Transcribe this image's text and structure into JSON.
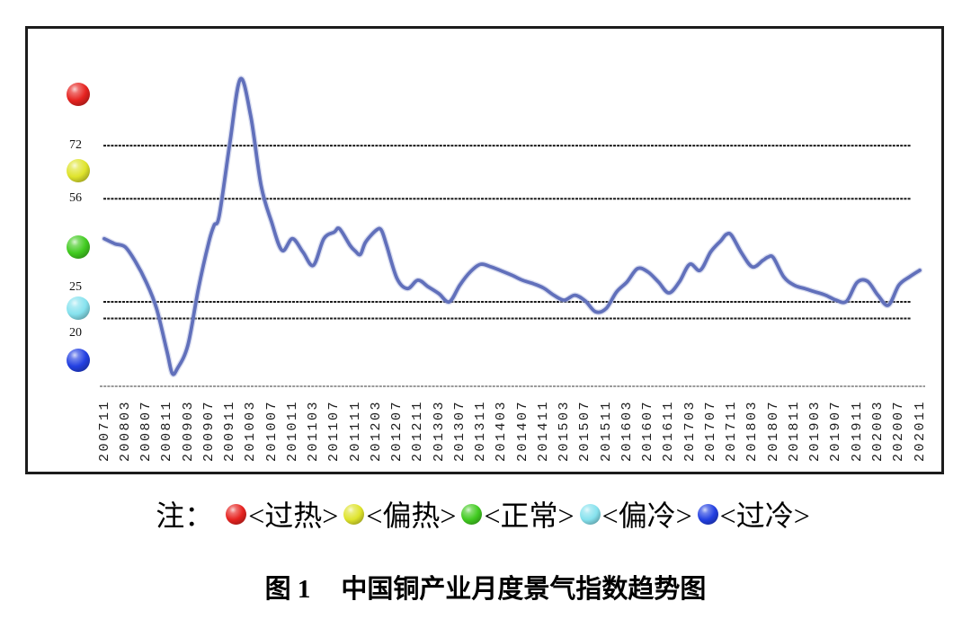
{
  "page": {
    "background": "#ffffff"
  },
  "chart_data": {
    "type": "line",
    "title": "中国铜产业月度景气指数趋势图",
    "xlabel": "",
    "ylabel": "",
    "ylim": [
      0,
      107
    ],
    "grid": "horizontal-reference-lines-only",
    "legend_position": "below-chart",
    "y_axis_labels": [
      "72",
      "56",
      "25",
      "20"
    ],
    "y_reference_lines": [
      72,
      56,
      25,
      20
    ],
    "baseline_value": 0,
    "x_tick_labels": [
      "200711",
      "200803",
      "200807",
      "200811",
      "200903",
      "200907",
      "200911",
      "201003",
      "201007",
      "201011",
      "201103",
      "201107",
      "201111",
      "201203",
      "201207",
      "201211",
      "201303",
      "201307",
      "201311",
      "201403",
      "201407",
      "201411",
      "201503",
      "201507",
      "201511",
      "201603",
      "201607",
      "201611",
      "201703",
      "201707",
      "201711",
      "201803",
      "201807",
      "201811",
      "201903",
      "201907",
      "201911",
      "202003",
      "202007",
      "202011"
    ],
    "series": [
      {
        "name": "中国铜产业月度景气指数",
        "color": "#6170bb",
        "points": [
          [
            "200711",
            44
          ],
          [
            "200801",
            42.5
          ],
          [
            "200803",
            41.5
          ],
          [
            "200805",
            37
          ],
          [
            "200807",
            31
          ],
          [
            "200809",
            23
          ],
          [
            "200811",
            10
          ],
          [
            "200812",
            3.5
          ],
          [
            "200901",
            5
          ],
          [
            "200903",
            12
          ],
          [
            "200905",
            29
          ],
          [
            "200907",
            43
          ],
          [
            "200908",
            48
          ],
          [
            "200909",
            51
          ],
          [
            "200911",
            72.5
          ],
          [
            "201001",
            92
          ],
          [
            "201003",
            81
          ],
          [
            "201005",
            60
          ],
          [
            "201007",
            49
          ],
          [
            "201009",
            40.5
          ],
          [
            "201011",
            44
          ],
          [
            "201101",
            40
          ],
          [
            "201103",
            36
          ],
          [
            "201105",
            44
          ],
          [
            "201107",
            46
          ],
          [
            "201108",
            47
          ],
          [
            "201110",
            42
          ],
          [
            "201111",
            40.3
          ],
          [
            "201112",
            39.3
          ],
          [
            "201201",
            43
          ],
          [
            "201203",
            46.5
          ],
          [
            "201204",
            46.6
          ],
          [
            "201205",
            42
          ],
          [
            "201207",
            32
          ],
          [
            "201209",
            29
          ],
          [
            "201211",
            31.5
          ],
          [
            "201301",
            29.5
          ],
          [
            "201303",
            27.5
          ],
          [
            "201305",
            25
          ],
          [
            "201307",
            30
          ],
          [
            "201309",
            34
          ],
          [
            "201311",
            36.3
          ],
          [
            "201401",
            35.5
          ],
          [
            "201403",
            34.3
          ],
          [
            "201405",
            33
          ],
          [
            "201407",
            31.5
          ],
          [
            "201409",
            30.5
          ],
          [
            "201411",
            29.2
          ],
          [
            "201501",
            27
          ],
          [
            "201503",
            25.5
          ],
          [
            "201505",
            27
          ],
          [
            "201507",
            25.3
          ],
          [
            "201509",
            22
          ],
          [
            "201511",
            23
          ],
          [
            "201601",
            28
          ],
          [
            "201603",
            31
          ],
          [
            "201605",
            35
          ],
          [
            "201607",
            34
          ],
          [
            "201609",
            31
          ],
          [
            "201611",
            27.7
          ],
          [
            "201701",
            31
          ],
          [
            "201703",
            36.3
          ],
          [
            "201705",
            34.5
          ],
          [
            "201707",
            40
          ],
          [
            "201709",
            43.5
          ],
          [
            "201710",
            45.3
          ],
          [
            "201711",
            45
          ],
          [
            "201801",
            39.5
          ],
          [
            "201803",
            35.5
          ],
          [
            "201805",
            37.5
          ],
          [
            "201806",
            38.5
          ],
          [
            "201807",
            38.3
          ],
          [
            "201809",
            32.5
          ],
          [
            "201811",
            30
          ],
          [
            "201901",
            29
          ],
          [
            "201903",
            28
          ],
          [
            "201905",
            27
          ],
          [
            "201907",
            25.5
          ],
          [
            "201909",
            25.2
          ],
          [
            "201911",
            30.8
          ],
          [
            "202001",
            31.2
          ],
          [
            "202003",
            27
          ],
          [
            "202005",
            24
          ],
          [
            "202007",
            30
          ],
          [
            "202009",
            32.5
          ],
          [
            "202011",
            34.5
          ]
        ]
      }
    ],
    "zones": [
      {
        "id": "overheat",
        "label": "过热",
        "legend_label": "<过热>",
        "color": "#e62320"
      },
      {
        "id": "warm",
        "label": "偏热",
        "legend_label": "<偏热>",
        "color": "#dfe42c"
      },
      {
        "id": "normal",
        "label": "正常",
        "legend_label": "<正常>",
        "color": "#41cb20"
      },
      {
        "id": "cool",
        "label": "偏冷",
        "legend_label": "<偏冷>",
        "color": "#86e2ee"
      },
      {
        "id": "overcool",
        "label": "过冷",
        "legend_label": "<过冷>",
        "color": "#2340e2"
      }
    ]
  },
  "legend": {
    "note_prefix": "注："
  },
  "caption": {
    "label": "图 1",
    "title": "中国铜产业月度景气指数趋势图"
  },
  "colors": {
    "curve": "#6170bb",
    "curve_halo": "#aab3dd",
    "reference_line": "#1b1b1b",
    "axis_line": "#9a9a9a",
    "frame_border": "#1c1c1c",
    "tick_text": "#1d1d1d"
  }
}
